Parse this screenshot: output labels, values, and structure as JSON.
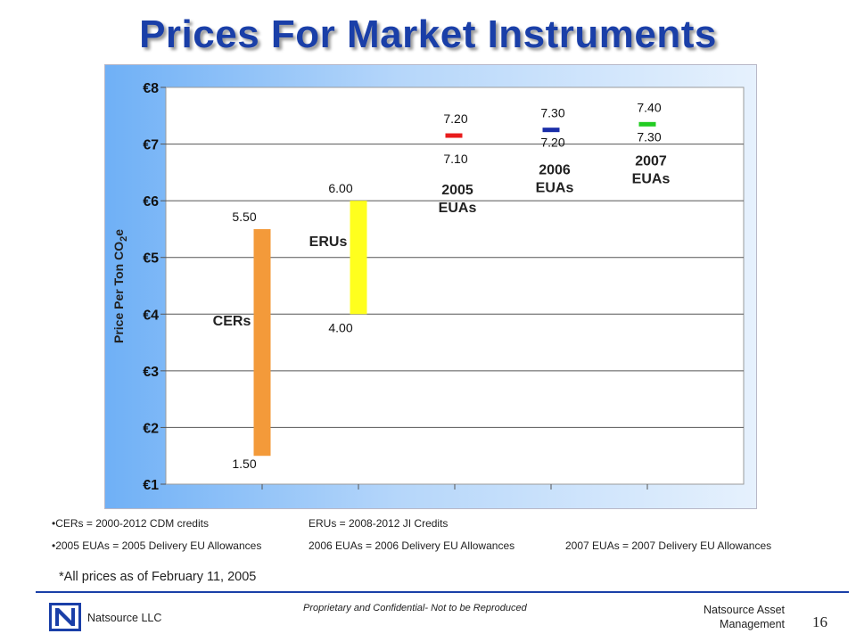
{
  "title": "Prices For Market Instruments",
  "chart_data": {
    "type": "range-bar",
    "ylabel_main": "Price Per Ton CO",
    "ylabel_sub": "2",
    "ylabel_suffix": "e",
    "ylim": [
      1,
      8
    ],
    "y_ticks": [
      "€1",
      "€2",
      "€3",
      "€4",
      "€5",
      "€6",
      "€7",
      "€8"
    ],
    "grid": true,
    "series": [
      {
        "name": "CERs",
        "low": 1.5,
        "high": 5.5,
        "low_label": "1.50",
        "high_label": "5.50",
        "color": "#f39a3a",
        "kind": "bar"
      },
      {
        "name": "ERUs",
        "low": 4.0,
        "high": 6.0,
        "low_label": "4.00",
        "high_label": "6.00",
        "color": "#ffff1e",
        "kind": "bar"
      },
      {
        "name_line1": "2005",
        "name_line2": "EUAs",
        "low": 7.1,
        "high": 7.2,
        "low_label": "7.10",
        "high_label": "7.20",
        "color": "#e81c1c",
        "kind": "tick"
      },
      {
        "name_line1": "2006",
        "name_line2": "EUAs",
        "low": 7.2,
        "high": 7.3,
        "low_label": "7.20",
        "high_label": "7.30",
        "color": "#1a2ea8",
        "kind": "tick"
      },
      {
        "name_line1": "2007",
        "name_line2": "EUAs",
        "low": 7.3,
        "high": 7.4,
        "low_label": "7.30",
        "high_label": "7.40",
        "color": "#22cc22",
        "kind": "tick"
      }
    ]
  },
  "notes": {
    "row1_col1": "•CERs = 2000-2012  CDM credits",
    "row1_col2": "ERUs = 2008-2012  JI Credits",
    "row2_col1": "•2005 EUAs = 2005 Delivery EU Allowances",
    "row2_col2": "2006 EUAs = 2006 Delivery EU Allowances",
    "row2_col3": "2007 EUAs = 2007 Delivery EU Allowances"
  },
  "footnote": "*All prices as of February 11, 2005",
  "footer": {
    "company": "Natsource LLC",
    "confidential": "Proprietary and Confidential- Not to be Reproduced",
    "right_line1": "Natsource Asset",
    "right_line2": "Management",
    "page": "16",
    "line_color": "#1a3fa8"
  }
}
